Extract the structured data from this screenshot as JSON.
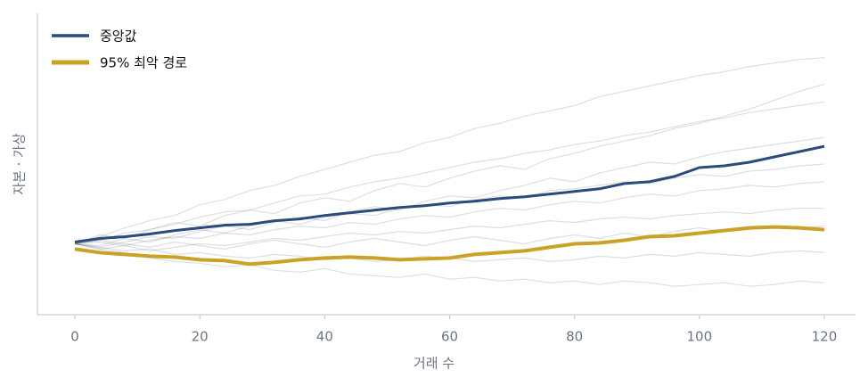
{
  "chart_data": {
    "type": "line",
    "x_label": "거래 수",
    "y_label": "자본 · 가상",
    "x": [
      0,
      4,
      8,
      12,
      16,
      20,
      24,
      28,
      32,
      36,
      40,
      44,
      48,
      52,
      56,
      60,
      64,
      68,
      72,
      76,
      80,
      84,
      88,
      92,
      96,
      100,
      104,
      108,
      112,
      116,
      120
    ],
    "xlim": [
      -6,
      125
    ],
    "xticks": [
      0,
      20,
      40,
      60,
      80,
      100,
      120
    ],
    "ylim": [
      60,
      230
    ],
    "legend": "upper left",
    "series": [
      {
        "color": "#5a6070",
        "values": [
          100,
          104,
          109,
          113,
          116,
          122,
          125,
          130,
          133,
          138,
          142,
          146,
          150,
          152,
          157,
          160,
          165,
          168,
          172,
          175,
          178,
          183,
          186,
          189,
          192,
          195,
          197,
          200,
          202,
          204,
          205
        ]
      },
      {
        "color": "#5a6070",
        "values": [
          100,
          102,
          106,
          108,
          111,
          115,
          118,
          119,
          123,
          127,
          128,
          132,
          135,
          137,
          140,
          143,
          146,
          148,
          151,
          153,
          156,
          158,
          161,
          163,
          166,
          169,
          171,
          174,
          176,
          178,
          180
        ]
      },
      {
        "color": "#5a6070",
        "values": [
          100,
          98,
          101,
          104,
          103,
          107,
          110,
          108,
          112,
          115,
          113,
          118,
          121,
          119,
          124,
          127,
          126,
          130,
          133,
          137,
          135,
          140,
          143,
          146,
          145,
          149,
          152,
          154,
          156,
          158,
          160
        ]
      },
      {
        "color": "#5a6070",
        "values": [
          100,
          101,
          99,
          102,
          104,
          103,
          106,
          105,
          108,
          110,
          109,
          112,
          111,
          114,
          116,
          115,
          118,
          120,
          119,
          122,
          124,
          123,
          126,
          128,
          127,
          130,
          131,
          133,
          132,
          134,
          135
        ]
      },
      {
        "color": "#5a6070",
        "values": [
          100,
          97,
          99,
          96,
          98,
          100,
          99,
          101,
          103,
          102,
          104,
          106,
          105,
          107,
          106,
          108,
          110,
          109,
          111,
          113,
          112,
          114,
          115,
          114,
          116,
          117,
          118,
          117,
          119,
          120,
          120
        ]
      },
      {
        "color": "#5a6070",
        "values": [
          100,
          98,
          96,
          97,
          94,
          95,
          93,
          92,
          94,
          93,
          91,
          92,
          90,
          91,
          93,
          92,
          90,
          91,
          92,
          90,
          91,
          93,
          92,
          94,
          93,
          95,
          94,
          93,
          95,
          96,
          95
        ]
      },
      {
        "color": "#5a6070",
        "values": [
          100,
          97,
          95,
          92,
          90,
          89,
          87,
          88,
          85,
          84,
          86,
          83,
          82,
          81,
          83,
          80,
          81,
          79,
          80,
          78,
          79,
          77,
          79,
          78,
          76,
          77,
          78,
          76,
          77,
          79,
          78
        ]
      },
      {
        "color": "#5a6070",
        "values": [
          100,
          105,
          103,
          108,
          112,
          110,
          116,
          119,
          117,
          123,
          126,
          124,
          130,
          134,
          132,
          137,
          141,
          144,
          142,
          148,
          151,
          155,
          158,
          161,
          165,
          168,
          172,
          176,
          181,
          186,
          190
        ]
      },
      {
        "color": "#5a6070",
        "values": [
          100,
          99,
          103,
          101,
          105,
          108,
          106,
          110,
          113,
          111,
          115,
          117,
          116,
          120,
          122,
          121,
          125,
          127,
          126,
          130,
          131,
          133,
          135,
          134,
          137,
          139,
          138,
          141,
          142,
          144,
          145
        ]
      },
      {
        "color": "#5a6070",
        "values": [
          100,
          102,
          100,
          98,
          101,
          99,
          97,
          100,
          102,
          100,
          98,
          101,
          103,
          101,
          99,
          102,
          104,
          102,
          100,
          103,
          105,
          103,
          106,
          104,
          107,
          109,
          107,
          108,
          110,
          109,
          110
        ]
      },
      {
        "name": "중앙값",
        "color": "#2c4a7a",
        "values": [
          101,
          103,
          104,
          105.5,
          107.5,
          109,
          110.5,
          111,
          113,
          114,
          116,
          117.5,
          119,
          120.5,
          121.5,
          123,
          124,
          125.5,
          126.5,
          128,
          129.5,
          131,
          134,
          135,
          138,
          143,
          144,
          146,
          149,
          152,
          155
        ]
      },
      {
        "name": "95% 최악 경로",
        "color": "#c9a227",
        "values": [
          97,
          95,
          94,
          93,
          92.5,
          91,
          90.5,
          88.5,
          89.5,
          91,
          92,
          92.5,
          92,
          91,
          91.5,
          92,
          94,
          95,
          96,
          98,
          100,
          100.5,
          102,
          104,
          104.5,
          106,
          107.5,
          109,
          109.5,
          109,
          108
        ]
      }
    ]
  }
}
